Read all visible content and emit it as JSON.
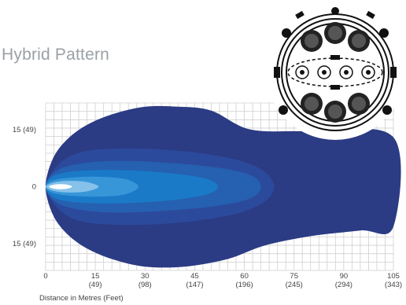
{
  "chart_data": {
    "type": "area",
    "title": "Hybrid Pattern",
    "xlabel": "Distance in Metres (Feet)",
    "ylabel": "",
    "xlim": [
      0,
      105
    ],
    "ylim": [
      -22,
      22
    ],
    "grid": true,
    "x_ticks": [
      {
        "value": 0,
        "label": "0",
        "sub": ""
      },
      {
        "value": 15,
        "label": "15",
        "sub": "(49)"
      },
      {
        "value": 30,
        "label": "30",
        "sub": "(98)"
      },
      {
        "value": 45,
        "label": "45",
        "sub": "(147)"
      },
      {
        "value": 60,
        "label": "60",
        "sub": "(196)"
      },
      {
        "value": 75,
        "label": "75",
        "sub": "(245)"
      },
      {
        "value": 90,
        "label": "90",
        "sub": "(294)"
      },
      {
        "value": 105,
        "label": "105",
        "sub": "(343)"
      }
    ],
    "y_ticks": [
      {
        "value": 15,
        "label": "15 (49)"
      },
      {
        "value": 0,
        "label": "0"
      },
      {
        "value": -15,
        "label": "15 (49)"
      }
    ],
    "series": [
      {
        "color": "#2b3b84",
        "contour": [
          [
            0,
            0
          ],
          [
            2,
            7
          ],
          [
            6,
            12
          ],
          [
            12,
            16
          ],
          [
            20,
            19
          ],
          [
            30,
            21
          ],
          [
            40,
            21
          ],
          [
            50,
            20
          ],
          [
            62,
            15
          ],
          [
            80,
            14.5
          ],
          [
            105,
            13
          ],
          [
            105,
            -10.5
          ],
          [
            95,
            -11.5
          ],
          [
            80,
            -13
          ],
          [
            66,
            -15.5
          ],
          [
            55,
            -19
          ],
          [
            42,
            -21
          ],
          [
            30,
            -21
          ],
          [
            20,
            -19
          ],
          [
            12,
            -16
          ],
          [
            6,
            -12
          ],
          [
            2,
            -7
          ]
        ]
      },
      {
        "color": "#2c4a9c",
        "contour": [
          [
            0,
            0
          ],
          [
            3,
            5
          ],
          [
            8,
            8.3
          ],
          [
            16,
            9.8
          ],
          [
            30,
            10
          ],
          [
            45,
            9
          ],
          [
            58,
            7
          ],
          [
            66,
            4
          ],
          [
            69,
            0
          ],
          [
            66,
            -4
          ],
          [
            58,
            -7
          ],
          [
            45,
            -9
          ],
          [
            30,
            -10
          ],
          [
            16,
            -9.8
          ],
          [
            8,
            -8.3
          ],
          [
            3,
            -5
          ]
        ]
      },
      {
        "color": "#2660b0",
        "contour": [
          [
            0,
            0
          ],
          [
            3,
            4
          ],
          [
            10,
            6
          ],
          [
            22,
            6.8
          ],
          [
            38,
            6.2
          ],
          [
            52,
            5
          ],
          [
            62,
            3
          ],
          [
            65,
            0
          ],
          [
            62,
            -3
          ],
          [
            52,
            -5
          ],
          [
            38,
            -6.2
          ],
          [
            22,
            -6.8
          ],
          [
            10,
            -6
          ],
          [
            3,
            -4
          ]
        ]
      },
      {
        "color": "#1a7ac8",
        "contour": [
          [
            0,
            0
          ],
          [
            2,
            2.6
          ],
          [
            8,
            4
          ],
          [
            20,
            4.4
          ],
          [
            35,
            3.8
          ],
          [
            48,
            2.2
          ],
          [
            52,
            0
          ],
          [
            48,
            -2.2
          ],
          [
            35,
            -3.8
          ],
          [
            20,
            -4.4
          ],
          [
            8,
            -4
          ],
          [
            2,
            -2.6
          ]
        ]
      },
      {
        "color": "#3796d8",
        "contour": [
          [
            0,
            0
          ],
          [
            2,
            1.6
          ],
          [
            8,
            2.4
          ],
          [
            16,
            2.6
          ],
          [
            24,
            2
          ],
          [
            28,
            0
          ],
          [
            24,
            -2
          ],
          [
            16,
            -2.6
          ],
          [
            8,
            -2.4
          ],
          [
            2,
            -1.6
          ]
        ]
      },
      {
        "color": "#86c1ea",
        "contour": [
          [
            0,
            0
          ],
          [
            2,
            1
          ],
          [
            6,
            1.5
          ],
          [
            12,
            1.3
          ],
          [
            16,
            0
          ],
          [
            12,
            -1.3
          ],
          [
            6,
            -1.5
          ],
          [
            2,
            -1
          ]
        ]
      },
      {
        "color": "#ffffff",
        "contour": [
          [
            1,
            0
          ],
          [
            3,
            0.6
          ],
          [
            6,
            0.6
          ],
          [
            8,
            0
          ],
          [
            6,
            -0.6
          ],
          [
            3,
            -0.6
          ]
        ]
      }
    ]
  },
  "lamp": {
    "icon": "round-led-lamp-icon"
  }
}
